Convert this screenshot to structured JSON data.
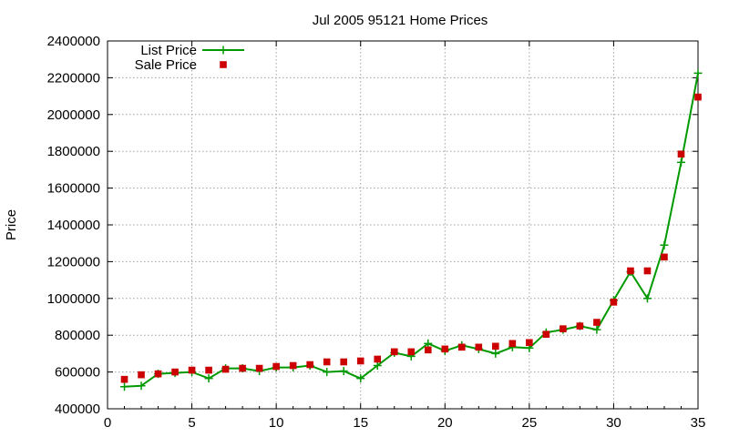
{
  "chart_data": {
    "type": "line",
    "title": "Jul 2005 95121 Home Prices",
    "xlabel": "",
    "ylabel": "Price",
    "xlim": [
      0,
      35
    ],
    "ylim": [
      400000,
      2400000
    ],
    "xticks": [
      0,
      5,
      10,
      15,
      20,
      25,
      30,
      35
    ],
    "yticks": [
      400000,
      600000,
      800000,
      1000000,
      1200000,
      1400000,
      1600000,
      1800000,
      2000000,
      2200000,
      2400000
    ],
    "grid": true,
    "legend_position": "top-left",
    "x": [
      1,
      2,
      3,
      4,
      5,
      6,
      7,
      8,
      9,
      10,
      11,
      12,
      13,
      14,
      15,
      16,
      17,
      18,
      19,
      20,
      21,
      22,
      23,
      24,
      25,
      26,
      27,
      28,
      29,
      30,
      31,
      32,
      33,
      34,
      35
    ],
    "series": [
      {
        "name": "List Price",
        "style": "line-plus",
        "color": "#009900",
        "values": [
          520000,
          525000,
          590000,
          595000,
          600000,
          565000,
          620000,
          620000,
          605000,
          625000,
          625000,
          635000,
          600000,
          605000,
          565000,
          635000,
          705000,
          685000,
          755000,
          715000,
          745000,
          725000,
          700000,
          735000,
          730000,
          815000,
          830000,
          850000,
          830000,
          990000,
          1145000,
          1000000,
          1290000,
          1740000,
          2225000
        ]
      },
      {
        "name": "Sale Price",
        "style": "square",
        "color": "#cc0000",
        "values": [
          560000,
          585000,
          590000,
          600000,
          610000,
          610000,
          615000,
          620000,
          620000,
          630000,
          635000,
          640000,
          655000,
          655000,
          660000,
          670000,
          710000,
          710000,
          720000,
          725000,
          735000,
          735000,
          740000,
          755000,
          760000,
          805000,
          835000,
          850000,
          870000,
          980000,
          1150000,
          1150000,
          1225000,
          1785000,
          2095000
        ]
      }
    ]
  }
}
